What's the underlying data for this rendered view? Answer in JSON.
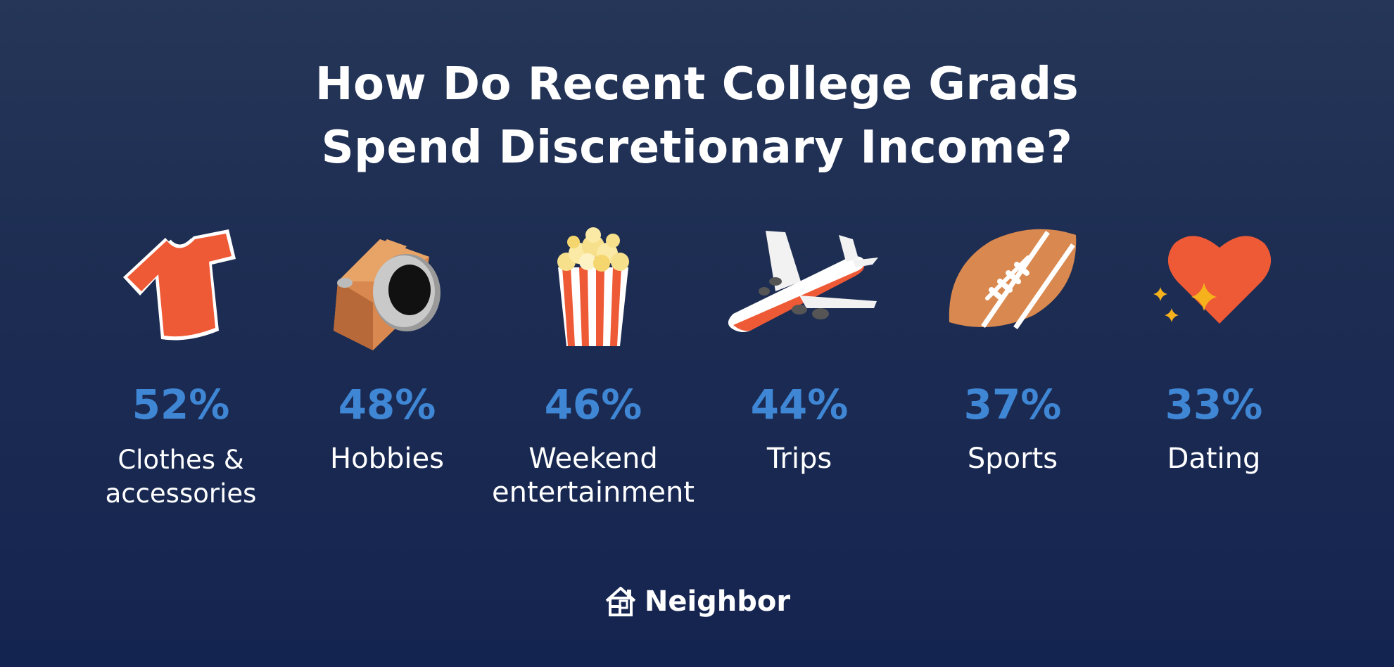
{
  "title": {
    "line1": "How Do Recent College Grads",
    "line2": "Spend Discretionary Income?"
  },
  "items": [
    {
      "icon": "t-shirt-icon",
      "percent": "52%",
      "value": 52,
      "label": "Clothes &\naccessories"
    },
    {
      "icon": "camera-icon",
      "percent": "48%",
      "value": 48,
      "label": "Hobbies"
    },
    {
      "icon": "popcorn-icon",
      "percent": "46%",
      "value": 46,
      "label": "Weekend\nentertainment"
    },
    {
      "icon": "airplane-icon",
      "percent": "44%",
      "value": 44,
      "label": "Trips"
    },
    {
      "icon": "football-icon",
      "percent": "37%",
      "value": 37,
      "label": "Sports"
    },
    {
      "icon": "heart-icon",
      "percent": "33%",
      "value": 33,
      "label": "Dating"
    }
  ],
  "brand": {
    "name": "Neighbor",
    "icon": "house-logo-icon"
  },
  "colors": {
    "background_top": "#253658",
    "background_bottom": "#142450",
    "percent": "#3f86d4",
    "text": "#ffffff",
    "accent_orange": "#ee5a36",
    "accent_tan": "#d9894f"
  }
}
